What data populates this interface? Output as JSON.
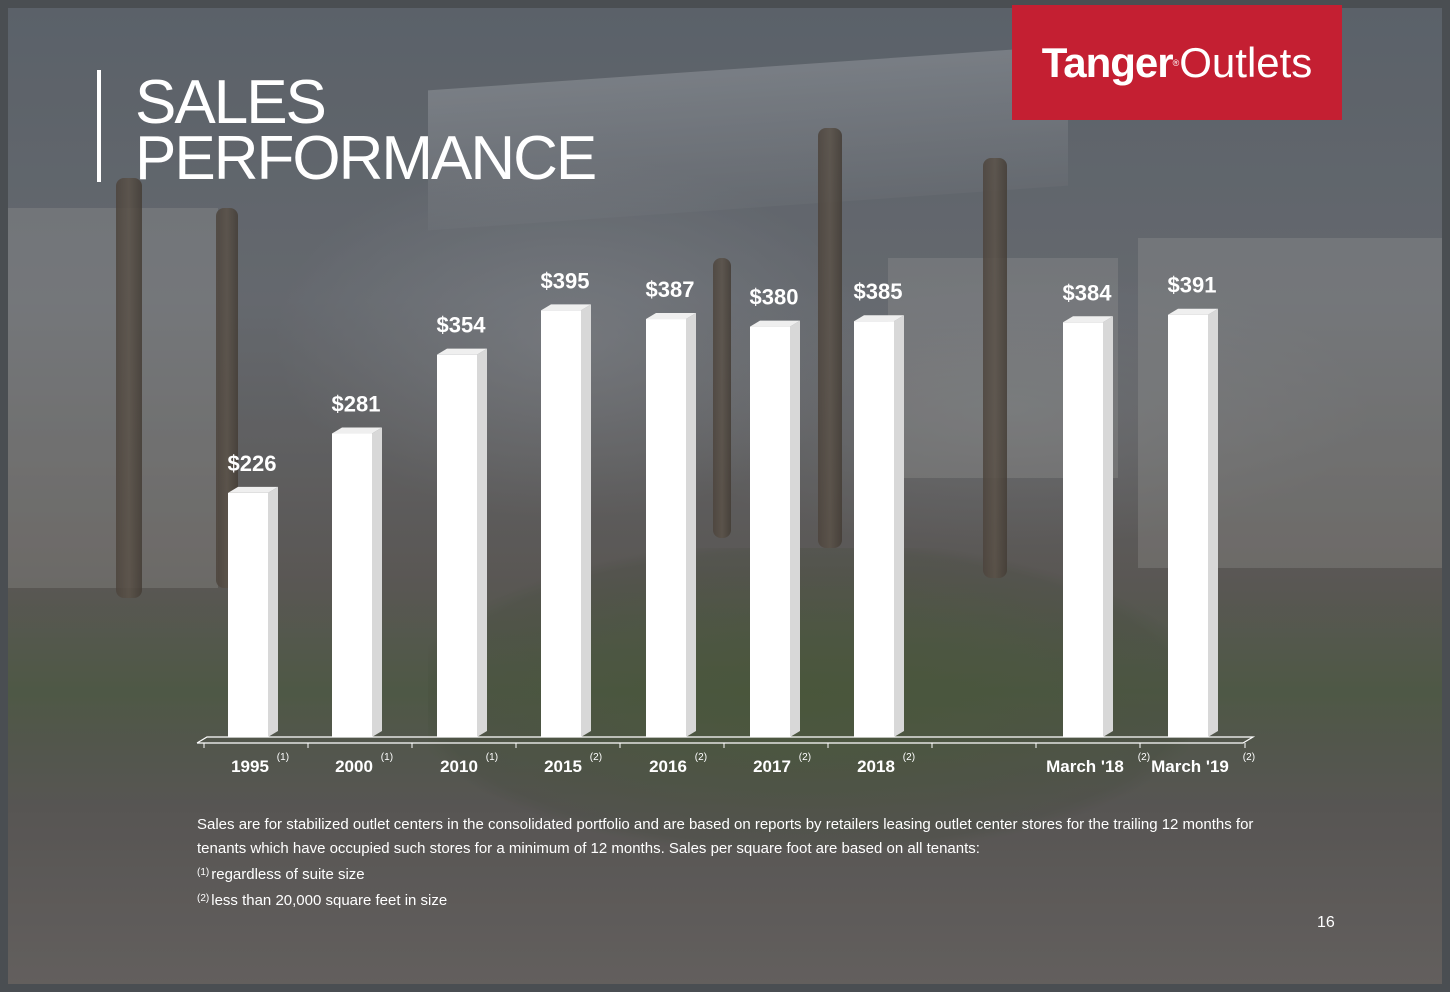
{
  "title": {
    "line1": "SALES",
    "line2": "PERFORMANCE"
  },
  "logo": {
    "part1": "Tanger",
    "mark": "®",
    "part2": "Outlets",
    "color": "#c41f32"
  },
  "chart_data": {
    "type": "bar",
    "title": "",
    "xlabel": "",
    "ylabel": "",
    "categories": [
      "1995",
      "2000",
      "2010",
      "2015",
      "2016",
      "2017",
      "2018",
      "March '18",
      "March '19"
    ],
    "category_notes": [
      "(1)",
      "(1)",
      "(1)",
      "(2)",
      "(2)",
      "(2)",
      "(2)",
      "(2)",
      "(2)"
    ],
    "values": [
      226,
      281,
      354,
      395,
      387,
      380,
      385,
      384,
      391
    ],
    "value_labels": [
      "$226",
      "$281",
      "$354",
      "$395",
      "$387",
      "$380",
      "$385",
      "$384",
      "$391"
    ],
    "ylim": [
      0,
      420
    ],
    "grid": false,
    "legend": "none",
    "bar_color": "#ffffff",
    "bar_side_color": "#d8d8d8"
  },
  "footnote": {
    "text": "Sales are for stabilized outlet centers in the consolidated portfolio and are based on reports by retailers leasing outlet center stores for the trailing 12 months for tenants which have occupied such stores for a minimum of 12 months. Sales per square foot are based on all tenants:",
    "note1_mark": "(1)",
    "note1": "regardless of suite size",
    "note2_mark": "(2)",
    "note2": "less than 20,000 square feet in size"
  },
  "page_number": "16"
}
